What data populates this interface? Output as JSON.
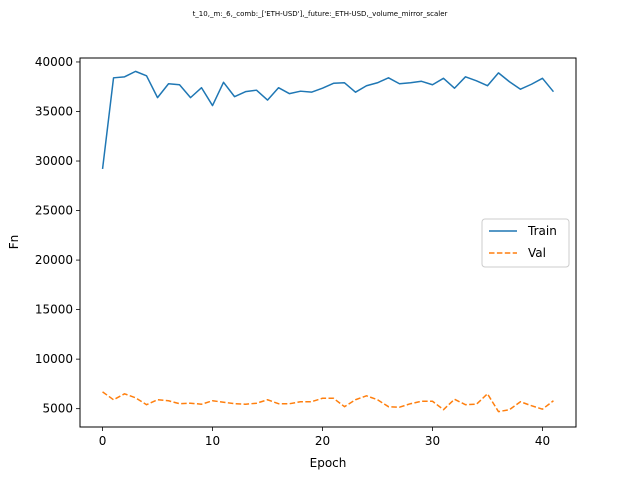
{
  "chart_data": {
    "type": "line",
    "title": "t_10,_m:_6,_comb:_['ETH-USD'],_future:_ETH-USD,_volume_mirror_scaler",
    "xlabel": "Epoch",
    "ylabel": "Fn",
    "xlim": [
      -2.05,
      43.05
    ],
    "ylim": [
      3150,
      40400
    ],
    "xticks": [
      0,
      10,
      20,
      30,
      40
    ],
    "xtick_labels": [
      "0",
      "10",
      "20",
      "30",
      "40"
    ],
    "yticks": [
      5000,
      10000,
      15000,
      20000,
      25000,
      30000,
      35000,
      40000
    ],
    "ytick_labels": [
      "5000",
      "10000",
      "15000",
      "20000",
      "25000",
      "30000",
      "35000",
      "40000"
    ],
    "grid": false,
    "legend_position": "center-right",
    "x": [
      0,
      1,
      2,
      3,
      4,
      5,
      6,
      7,
      8,
      9,
      10,
      11,
      12,
      13,
      14,
      15,
      16,
      17,
      18,
      19,
      20,
      21,
      22,
      23,
      24,
      25,
      26,
      27,
      28,
      29,
      30,
      31,
      32,
      33,
      34,
      35,
      36,
      37,
      38,
      39,
      40,
      41
    ],
    "series": [
      {
        "name": "Train",
        "color": "#1f77b4",
        "style": "solid",
        "values": [
          29200,
          38400,
          38500,
          39050,
          38600,
          36400,
          37800,
          37700,
          36400,
          37400,
          35600,
          37950,
          36500,
          37000,
          37150,
          36150,
          37400,
          36800,
          37050,
          36950,
          37350,
          37850,
          37900,
          36950,
          37600,
          37900,
          38400,
          37800,
          37900,
          38050,
          37700,
          38350,
          37350,
          38500,
          38100,
          37600,
          38900,
          38000,
          37250,
          37750,
          38350,
          37000
        ]
      },
      {
        "name": "Val",
        "color": "#ff7f0e",
        "style": "dashed",
        "values": [
          6700,
          5900,
          6500,
          6100,
          5400,
          5900,
          5800,
          5500,
          5550,
          5450,
          5800,
          5650,
          5500,
          5450,
          5550,
          5900,
          5500,
          5500,
          5700,
          5700,
          6050,
          6050,
          5200,
          5900,
          6300,
          5900,
          5200,
          5150,
          5500,
          5750,
          5750,
          4900,
          5950,
          5400,
          5450,
          6500,
          4700,
          4900,
          5700,
          5300,
          4950,
          5800
        ]
      }
    ]
  }
}
